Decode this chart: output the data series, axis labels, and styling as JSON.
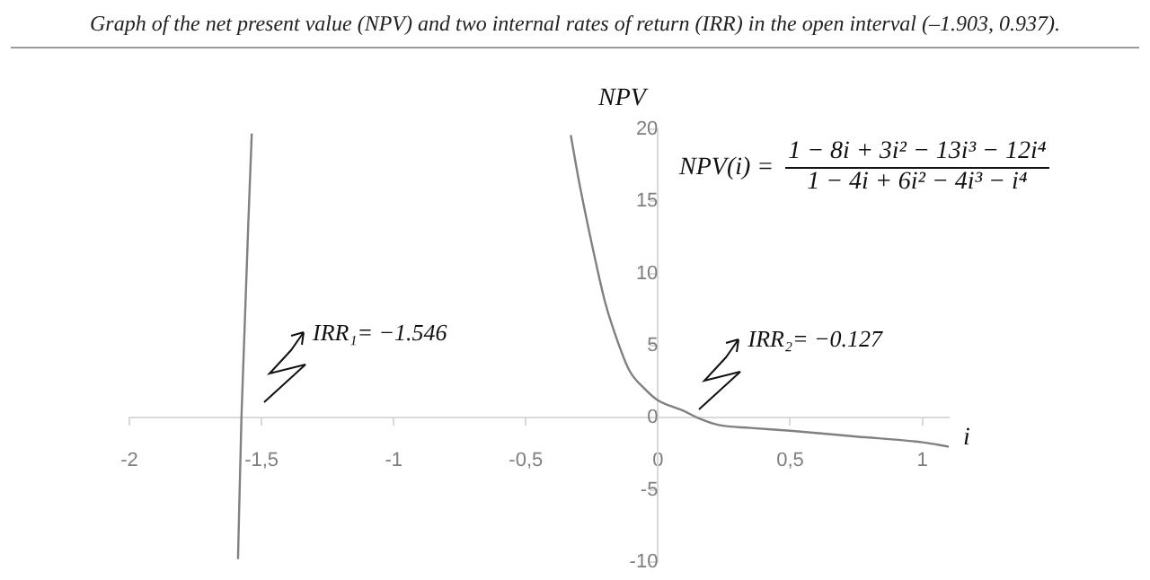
{
  "chart_data": {
    "type": "line",
    "title": "Graph of the net present value (NPV) and two internal rates of return (IRR) in the open interval (–1.903, 0.937).",
    "xlabel": "i",
    "ylabel": "NPV",
    "x": [
      -1.589,
      -1.576,
      -1.537,
      -1.0,
      -0.33,
      -0.3,
      -0.245,
      -0.2,
      -0.177,
      -0.109,
      -0.05,
      0,
      0.05,
      0.095,
      0.15,
      0.23,
      0.35,
      0.5,
      0.75,
      1,
      1.1
    ],
    "series": [
      {
        "color": "#808080",
        "values": [
          -9.8,
          0,
          19.7,
          null,
          19.6,
          16.5,
          11.6,
          8.0,
          6.6,
          3.3,
          2.0,
          1.2,
          0.8,
          0.5,
          0,
          -0.5,
          -0.7,
          -0.9,
          -1.3,
          -1.7,
          -2.0
        ]
      }
    ],
    "xlim": [
      -2,
      1.1
    ],
    "ylim": [
      -10,
      20
    ],
    "xticks": [
      -2,
      {
        "value": -1.5,
        "label": "-1,5"
      },
      -1,
      {
        "value": -0.5,
        "label": "-0,5"
      },
      0,
      {
        "value": 0.5,
        "label": "0,5"
      },
      1
    ],
    "yticks": [
      -10,
      -5,
      0,
      5,
      10,
      15,
      20
    ],
    "annotations": [
      "IRR₁= −1.546",
      {
        "text": "IRR₂= −0.127",
        "x": 0.15,
        "y": 0
      },
      "NPV(i) =",
      "1 − 8i + 3i² − 13i³ − 12i⁴",
      "1 − 4i + 6i² − 4i³ − i⁴"
    ],
    "grid": false,
    "legend": false,
    "marker": "none",
    "line_style": "solid"
  }
}
